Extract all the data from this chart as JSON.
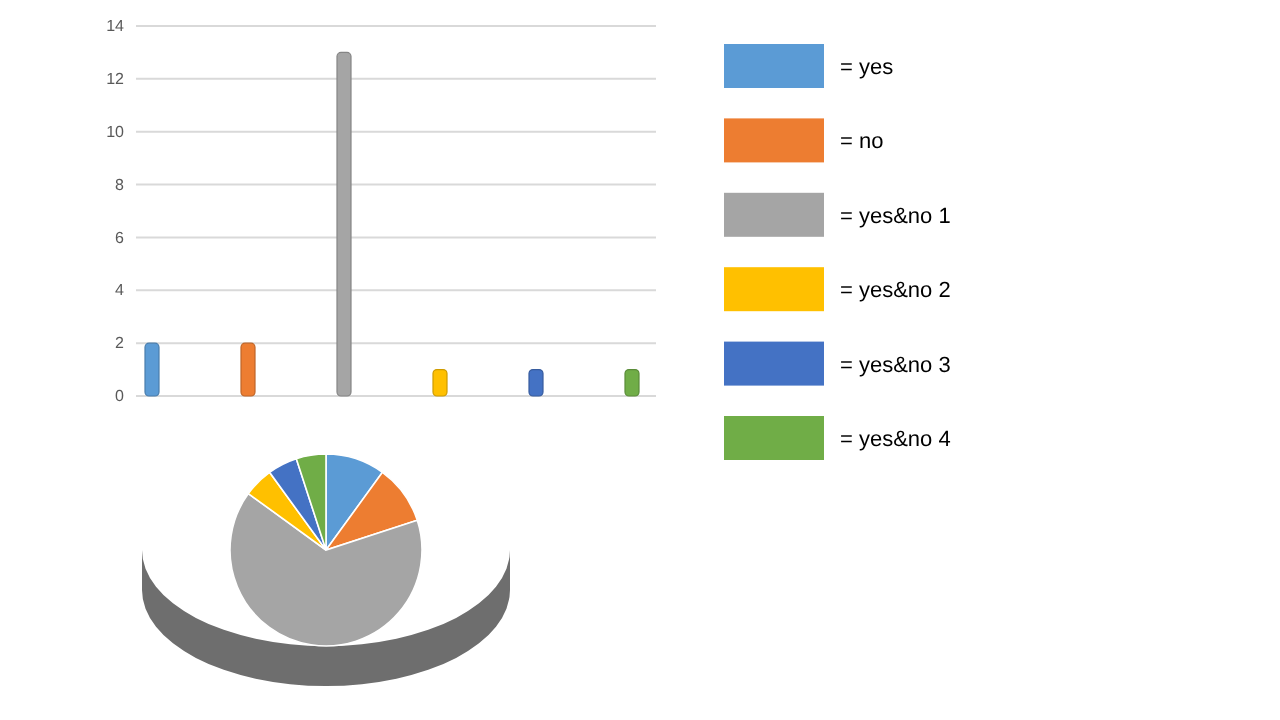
{
  "chart_data": [
    {
      "type": "bar",
      "categories": [
        null,
        null,
        null,
        null,
        null,
        null
      ],
      "ylim": [
        0,
        14
      ],
      "yticks": [
        0,
        2,
        4,
        6,
        8,
        10,
        12,
        14
      ],
      "grid": "y",
      "legend": "right",
      "tick_labels": "y",
      "series": [
        {
          "name": "= yes",
          "color": "#5b9bd5",
          "values": [
            2,
            null,
            null,
            null,
            null,
            null
          ]
        },
        {
          "name": "= no",
          "color": "#ed7d31",
          "values": [
            null,
            2,
            null,
            null,
            null,
            null
          ]
        },
        {
          "name": "= yes&no 1",
          "color": "#a5a5a5",
          "values": [
            null,
            null,
            13,
            null,
            null,
            null
          ]
        },
        {
          "name": "= yes&no 2",
          "color": "#ffc000",
          "values": [
            null,
            null,
            null,
            1,
            null,
            null
          ]
        },
        {
          "name": "= yes&no 3",
          "color": "#4472c4",
          "values": [
            null,
            null,
            null,
            null,
            1,
            null
          ]
        },
        {
          "name": "= yes&no 4",
          "color": "#70ad47",
          "values": [
            null,
            null,
            null,
            null,
            null,
            1
          ]
        }
      ]
    },
    {
      "type": "pie",
      "categories": [
        null,
        null,
        null,
        null,
        null,
        null
      ],
      "values": [
        10,
        10,
        65,
        5,
        5,
        5
      ],
      "colors": [
        "#5b9bd5",
        "#ed7d31",
        "#a5a5a5",
        "#ffc000",
        "#4472c4",
        "#70ad47"
      ]
    }
  ]
}
